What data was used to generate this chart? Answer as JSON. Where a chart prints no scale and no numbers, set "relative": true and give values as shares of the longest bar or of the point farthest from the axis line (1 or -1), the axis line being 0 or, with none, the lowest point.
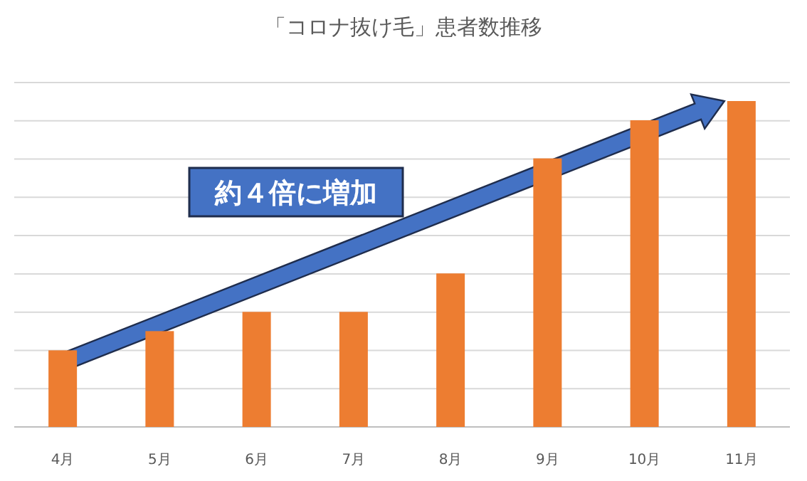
{
  "chart_data": {
    "type": "bar",
    "title": "「コロナ抜け毛」患者数推移",
    "categories": [
      "4月",
      "5月",
      "6月",
      "7月",
      "8月",
      "9月",
      "10月",
      "11月"
    ],
    "values": [
      0.235,
      0.294,
      0.353,
      0.353,
      0.471,
      0.824,
      0.941,
      1
    ],
    "color": "#ed7d31",
    "relative": true,
    "grid": "y",
    "annotations": [
      "約４倍に増加"
    ]
  }
}
